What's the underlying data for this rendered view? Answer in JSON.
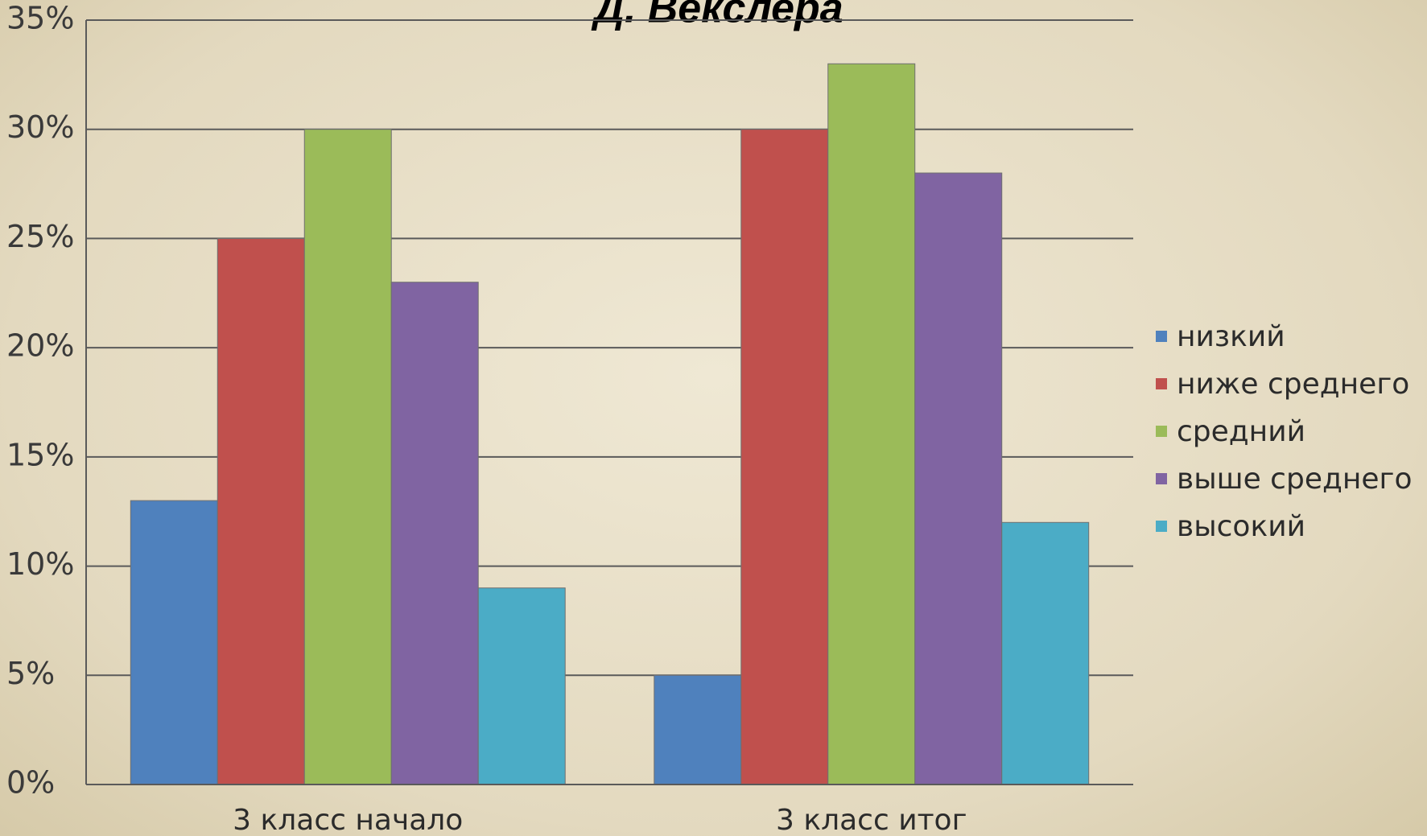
{
  "chart_data": {
    "type": "bar",
    "title": "Д. Векслера",
    "categories": [
      "3 класс начало",
      "3 класс итог"
    ],
    "series": [
      {
        "name": "низкий",
        "color": "#4f81bd",
        "values": [
          13,
          5
        ]
      },
      {
        "name": "ниже среднего",
        "color": "#c0504d",
        "values": [
          25,
          30
        ]
      },
      {
        "name": "средний",
        "color": "#9bbb59",
        "values": [
          30,
          33
        ]
      },
      {
        "name": "выше среднего",
        "color": "#8064a2",
        "values": [
          23,
          28
        ]
      },
      {
        "name": "высокий",
        "color": "#4bacc6",
        "values": [
          9,
          12
        ]
      }
    ],
    "ylim": [
      0,
      35
    ],
    "yticks": [
      {
        "value": 0,
        "label": "0%"
      },
      {
        "value": 5,
        "label": "5%"
      },
      {
        "value": 10,
        "label": "10%"
      },
      {
        "value": 15,
        "label": "15%"
      },
      {
        "value": 20,
        "label": "20%"
      },
      {
        "value": 25,
        "label": "25%"
      },
      {
        "value": 30,
        "label": "30%"
      },
      {
        "value": 35,
        "label": "35%"
      }
    ],
    "grid": true,
    "legend": "right"
  }
}
